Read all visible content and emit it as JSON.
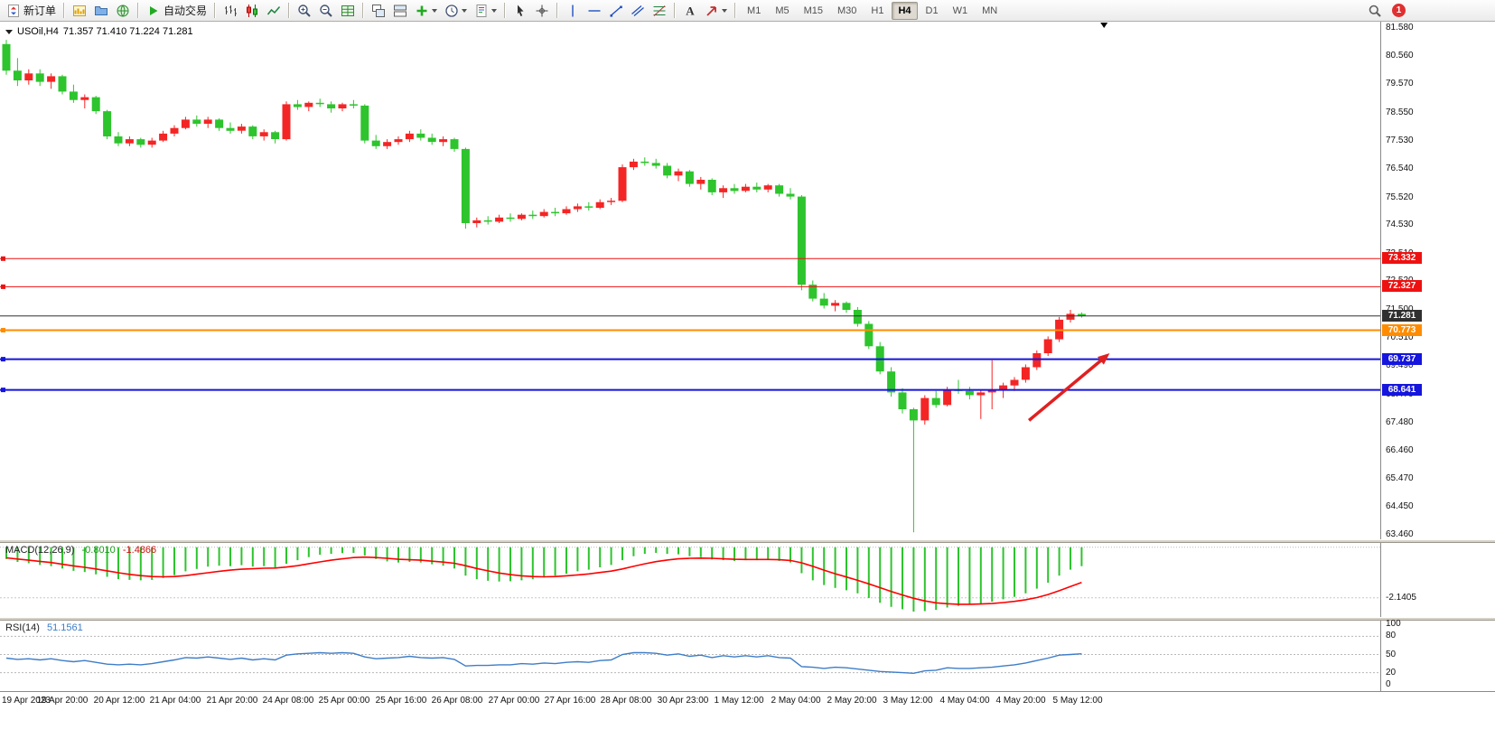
{
  "toolbar": {
    "items": [
      {
        "name": "new-order-button",
        "icon": "new-order",
        "label": "新订单"
      },
      {
        "name": "sep"
      },
      {
        "name": "charts-button",
        "icon": "chart-yellow"
      },
      {
        "name": "profiles-button",
        "icon": "profiles"
      },
      {
        "name": "market-watch-button",
        "icon": "globe"
      },
      {
        "name": "sep"
      },
      {
        "name": "auto-trading-button",
        "icon": "play",
        "label": "自动交易"
      },
      {
        "name": "sep"
      },
      {
        "name": "bar-chart-button",
        "icon": "bars"
      },
      {
        "name": "candlestick-chart-button",
        "icon": "candles"
      },
      {
        "name": "line-chart-button",
        "icon": "linechart"
      },
      {
        "name": "sep"
      },
      {
        "name": "zoom-in-button",
        "icon": "zoom-in"
      },
      {
        "name": "zoom-out-button",
        "icon": "zoom-out"
      },
      {
        "name": "tile-windows-button",
        "icon": "grid"
      },
      {
        "name": "sep"
      },
      {
        "name": "cascade-windows-button",
        "icon": "cascade"
      },
      {
        "name": "arrange-windows-button",
        "icon": "tile"
      },
      {
        "name": "indicators-button",
        "icon": "indicator",
        "caret": true
      },
      {
        "name": "periods-button",
        "icon": "clock",
        "caret": true
      },
      {
        "name": "templates-button",
        "icon": "template",
        "caret": true
      },
      {
        "name": "sep"
      },
      {
        "name": "cursor-button",
        "icon": "cursor"
      },
      {
        "name": "crosshair-button",
        "icon": "crosshair"
      },
      {
        "name": "sep"
      },
      {
        "name": "vertical-line-button",
        "icon": "vline"
      },
      {
        "name": "horizontal-line-button",
        "icon": "hline"
      },
      {
        "name": "trendline-button",
        "icon": "trendline"
      },
      {
        "name": "channel-button",
        "icon": "channel"
      },
      {
        "name": "fibonacci-button",
        "icon": "fibo"
      },
      {
        "name": "sep"
      },
      {
        "name": "text-button",
        "icon": "textA"
      },
      {
        "name": "arrows-button",
        "icon": "arrowshape",
        "caret": true
      },
      {
        "name": "sep"
      }
    ],
    "timeframes": [
      "M1",
      "M5",
      "M15",
      "M30",
      "H1",
      "H4",
      "D1",
      "W1",
      "MN"
    ],
    "active_timeframe": "H4",
    "notification_count": "1"
  },
  "chart_data": {
    "type": "candlestick",
    "symbol": "USOil",
    "timeframe": "H4",
    "title": "USOil,H4",
    "ohlc_text": "71.357 71.410 71.224 71.281",
    "current_ohlc": {
      "open": "71.357",
      "high": "71.410",
      "low": "71.224",
      "close": "71.281"
    },
    "up_color": "#f42525",
    "down_color": "#2dc42d",
    "y_domain": [
      81.8,
      63.3
    ],
    "price_axis_ticks": [
      "81.580",
      "80.560",
      "79.570",
      "78.550",
      "77.530",
      "76.540",
      "75.520",
      "74.530",
      "73.510",
      "72.520",
      "71.500",
      "70.510",
      "69.490",
      "68.470",
      "67.480",
      "66.460",
      "65.470",
      "64.450",
      "63.460"
    ],
    "time_axis_ticks": [
      "19 Apr 2023",
      "19 Apr 20:00",
      "20 Apr 12:00",
      "21 Apr 04:00",
      "21 Apr 20:00",
      "24 Apr 08:00",
      "25 Apr 00:00",
      "25 Apr 16:00",
      "26 Apr 08:00",
      "27 Apr 00:00",
      "27 Apr 16:00",
      "28 Apr 08:00",
      "30 Apr 23:00",
      "1 May 12:00",
      "2 May 04:00",
      "2 May 20:00",
      "3 May 12:00",
      "4 May 04:00",
      "4 May 20:00",
      "5 May 12:00"
    ],
    "hlines": [
      {
        "price": 73.332,
        "label": "73.332",
        "color": "#ee1111",
        "width": 1
      },
      {
        "price": 72.327,
        "label": "72.327",
        "color": "#ee1111",
        "width": 1
      },
      {
        "price": 71.281,
        "label": "71.281",
        "color": "#303030",
        "width": 1,
        "current": true
      },
      {
        "price": 70.773,
        "label": "70.773",
        "color": "#ff8c00",
        "width": 2
      },
      {
        "price": 69.737,
        "label": "69.737",
        "color": "#1515dd",
        "width": 2
      },
      {
        "price": 68.641,
        "label": "68.641",
        "color": "#1515dd",
        "width": 2
      }
    ],
    "trend_arrow": {
      "from_index": 91.3,
      "from_price": 67.55,
      "to_index": 98.5,
      "to_price": 69.95,
      "color": "#e02020"
    },
    "shift_marker_index": 98,
    "candles_ohlc": [
      [
        81.0,
        81.15,
        79.9,
        80.05
      ],
      [
        80.05,
        80.5,
        79.5,
        79.7
      ],
      [
        79.7,
        80.1,
        79.55,
        79.95
      ],
      [
        79.95,
        80.1,
        79.5,
        79.65
      ],
      [
        79.65,
        79.95,
        79.4,
        79.85
      ],
      [
        79.85,
        79.9,
        79.2,
        79.3
      ],
      [
        79.3,
        79.55,
        78.9,
        79.0
      ],
      [
        79.0,
        79.2,
        78.7,
        79.1
      ],
      [
        79.1,
        79.15,
        78.5,
        78.6
      ],
      [
        78.6,
        78.65,
        77.6,
        77.7
      ],
      [
        77.7,
        77.85,
        77.35,
        77.45
      ],
      [
        77.45,
        77.7,
        77.35,
        77.6
      ],
      [
        77.6,
        77.65,
        77.3,
        77.4
      ],
      [
        77.4,
        77.65,
        77.3,
        77.55
      ],
      [
        77.55,
        77.9,
        77.5,
        77.8
      ],
      [
        77.8,
        78.1,
        77.7,
        78.0
      ],
      [
        78.0,
        78.4,
        77.95,
        78.3
      ],
      [
        78.3,
        78.45,
        78.05,
        78.15
      ],
      [
        78.15,
        78.4,
        78.0,
        78.3
      ],
      [
        78.3,
        78.35,
        77.9,
        78.0
      ],
      [
        78.0,
        78.2,
        77.8,
        77.9
      ],
      [
        77.9,
        78.15,
        77.8,
        78.05
      ],
      [
        78.05,
        78.1,
        77.6,
        77.7
      ],
      [
        77.7,
        77.95,
        77.55,
        77.85
      ],
      [
        77.85,
        77.9,
        77.45,
        77.6
      ],
      [
        77.6,
        78.95,
        77.55,
        78.85
      ],
      [
        78.85,
        79.0,
        78.65,
        78.75
      ],
      [
        78.75,
        78.95,
        78.6,
        78.9
      ],
      [
        78.9,
        79.05,
        78.75,
        78.85
      ],
      [
        78.85,
        78.95,
        78.55,
        78.7
      ],
      [
        78.7,
        78.9,
        78.6,
        78.85
      ],
      [
        78.85,
        79.0,
        78.7,
        78.8
      ],
      [
        78.8,
        78.85,
        77.45,
        77.55
      ],
      [
        77.55,
        77.75,
        77.25,
        77.35
      ],
      [
        77.35,
        77.6,
        77.25,
        77.5
      ],
      [
        77.5,
        77.7,
        77.4,
        77.6
      ],
      [
        77.6,
        77.9,
        77.5,
        77.8
      ],
      [
        77.8,
        77.95,
        77.55,
        77.65
      ],
      [
        77.65,
        77.8,
        77.4,
        77.5
      ],
      [
        77.5,
        77.7,
        77.35,
        77.6
      ],
      [
        77.6,
        77.65,
        77.15,
        77.25
      ],
      [
        77.25,
        77.3,
        74.4,
        74.6
      ],
      [
        74.6,
        74.8,
        74.45,
        74.7
      ],
      [
        74.7,
        74.85,
        74.55,
        74.65
      ],
      [
        74.65,
        74.9,
        74.6,
        74.8
      ],
      [
        74.8,
        74.95,
        74.65,
        74.75
      ],
      [
        74.75,
        74.95,
        74.7,
        74.9
      ],
      [
        74.9,
        75.05,
        74.75,
        74.85
      ],
      [
        74.85,
        75.1,
        74.8,
        75.0
      ],
      [
        75.0,
        75.15,
        74.85,
        74.95
      ],
      [
        74.95,
        75.2,
        74.9,
        75.1
      ],
      [
        75.1,
        75.3,
        75.0,
        75.2
      ],
      [
        75.2,
        75.35,
        75.05,
        75.15
      ],
      [
        75.15,
        75.45,
        75.1,
        75.35
      ],
      [
        75.35,
        75.5,
        75.25,
        75.4
      ],
      [
        75.4,
        76.7,
        75.35,
        76.6
      ],
      [
        76.6,
        76.9,
        76.5,
        76.8
      ],
      [
        76.8,
        76.95,
        76.65,
        76.75
      ],
      [
        76.75,
        76.9,
        76.55,
        76.65
      ],
      [
        76.65,
        76.75,
        76.2,
        76.3
      ],
      [
        76.3,
        76.55,
        76.1,
        76.45
      ],
      [
        76.45,
        76.5,
        75.9,
        76.0
      ],
      [
        76.0,
        76.25,
        75.8,
        76.15
      ],
      [
        76.15,
        76.2,
        75.6,
        75.7
      ],
      [
        75.7,
        75.95,
        75.5,
        75.85
      ],
      [
        75.85,
        76.0,
        75.65,
        75.75
      ],
      [
        75.75,
        76.0,
        75.7,
        75.9
      ],
      [
        75.9,
        76.05,
        75.7,
        75.8
      ],
      [
        75.8,
        76.0,
        75.7,
        75.95
      ],
      [
        75.95,
        76.0,
        75.55,
        75.65
      ],
      [
        75.65,
        75.85,
        75.45,
        75.55
      ],
      [
        75.55,
        75.6,
        72.2,
        72.4
      ],
      [
        72.4,
        72.55,
        71.8,
        71.9
      ],
      [
        71.9,
        72.1,
        71.55,
        71.65
      ],
      [
        71.65,
        71.85,
        71.45,
        71.75
      ],
      [
        71.75,
        71.8,
        71.4,
        71.5
      ],
      [
        71.5,
        71.6,
        70.9,
        71.0
      ],
      [
        71.0,
        71.1,
        70.1,
        70.2
      ],
      [
        70.2,
        70.35,
        69.2,
        69.3
      ],
      [
        69.3,
        69.45,
        68.4,
        68.55
      ],
      [
        68.55,
        68.7,
        67.8,
        67.95
      ],
      [
        67.95,
        68.0,
        63.55,
        67.55
      ],
      [
        67.55,
        68.45,
        67.4,
        68.35
      ],
      [
        68.35,
        68.6,
        68.0,
        68.1
      ],
      [
        68.1,
        68.75,
        68.05,
        68.65
      ],
      [
        68.65,
        69.0,
        68.5,
        68.6
      ],
      [
        68.6,
        68.75,
        68.3,
        68.45
      ],
      [
        68.45,
        68.65,
        67.6,
        68.55
      ],
      [
        68.55,
        69.7,
        67.95,
        68.65
      ],
      [
        68.65,
        68.9,
        68.35,
        68.8
      ],
      [
        68.8,
        69.1,
        68.6,
        69.0
      ],
      [
        69.0,
        69.55,
        68.9,
        69.45
      ],
      [
        69.45,
        70.05,
        69.35,
        69.95
      ],
      [
        69.95,
        70.55,
        69.85,
        70.45
      ],
      [
        70.45,
        71.25,
        70.35,
        71.15
      ],
      [
        71.15,
        71.5,
        71.05,
        71.36
      ],
      [
        71.357,
        71.41,
        71.224,
        71.281
      ]
    ],
    "indicators": [
      {
        "type": "macd",
        "label": "MACD(12,26,9)",
        "value": "-0.8010",
        "signal_value": "-1.4866",
        "histogram_color": "#2dc42d",
        "signal_color": "#ff0000",
        "y_domain": [
          0.18,
          -2.95
        ],
        "axis_ticks": [
          {
            "label": "-2.1405",
            "value": -2.1405
          }
        ],
        "histogram": [
          -0.5,
          -0.62,
          -0.68,
          -0.75,
          -0.8,
          -0.9,
          -1.0,
          -1.05,
          -1.15,
          -1.25,
          -1.35,
          -1.38,
          -1.4,
          -1.38,
          -1.3,
          -1.18,
          -1.02,
          -0.92,
          -0.82,
          -0.78,
          -0.8,
          -0.76,
          -0.82,
          -0.8,
          -0.85,
          -0.7,
          -0.55,
          -0.42,
          -0.32,
          -0.28,
          -0.25,
          -0.24,
          -0.35,
          -0.5,
          -0.6,
          -0.65,
          -0.62,
          -0.65,
          -0.72,
          -0.78,
          -0.9,
          -1.2,
          -1.35,
          -1.42,
          -1.45,
          -1.44,
          -1.4,
          -1.35,
          -1.28,
          -1.2,
          -1.12,
          -1.02,
          -0.95,
          -0.85,
          -0.75,
          -0.55,
          -0.38,
          -0.28,
          -0.24,
          -0.28,
          -0.3,
          -0.38,
          -0.42,
          -0.52,
          -0.55,
          -0.58,
          -0.55,
          -0.55,
          -0.52,
          -0.58,
          -0.65,
          -1.1,
          -1.4,
          -1.6,
          -1.72,
          -1.82,
          -1.95,
          -2.15,
          -2.35,
          -2.52,
          -2.62,
          -2.72,
          -2.7,
          -2.65,
          -2.55,
          -2.48,
          -2.42,
          -2.38,
          -2.3,
          -2.2,
          -2.1,
          -1.95,
          -1.75,
          -1.5,
          -1.2,
          -0.95,
          -0.801
        ],
        "signal": [
          -0.45,
          -0.5,
          -0.55,
          -0.6,
          -0.65,
          -0.72,
          -0.79,
          -0.85,
          -0.92,
          -1.0,
          -1.08,
          -1.15,
          -1.2,
          -1.24,
          -1.25,
          -1.24,
          -1.2,
          -1.14,
          -1.08,
          -1.02,
          -0.97,
          -0.93,
          -0.91,
          -0.89,
          -0.88,
          -0.84,
          -0.78,
          -0.7,
          -0.62,
          -0.55,
          -0.49,
          -0.44,
          -0.42,
          -0.44,
          -0.47,
          -0.51,
          -0.53,
          -0.55,
          -0.59,
          -0.63,
          -0.68,
          -0.78,
          -0.9,
          -1.0,
          -1.09,
          -1.16,
          -1.21,
          -1.24,
          -1.25,
          -1.24,
          -1.21,
          -1.17,
          -1.13,
          -1.07,
          -1.01,
          -0.92,
          -0.81,
          -0.7,
          -0.61,
          -0.54,
          -0.49,
          -0.47,
          -0.46,
          -0.47,
          -0.49,
          -0.51,
          -0.52,
          -0.52,
          -0.52,
          -0.53,
          -0.56,
          -0.66,
          -0.81,
          -0.97,
          -1.12,
          -1.26,
          -1.4,
          -1.55,
          -1.71,
          -1.87,
          -2.02,
          -2.16,
          -2.27,
          -2.35,
          -2.39,
          -2.41,
          -2.41,
          -2.4,
          -2.38,
          -2.34,
          -2.29,
          -2.22,
          -2.13,
          -2.0,
          -1.84,
          -1.66,
          -1.4866
        ]
      },
      {
        "type": "rsi",
        "label": "RSI(14)",
        "value": "51.1561",
        "line_color": "#3e7dc8",
        "y_dom": [
          100,
          0
        ],
        "levels": [
          {
            "label": "100",
            "value": 100
          },
          {
            "label": "80",
            "value": 80
          },
          {
            "label": "50",
            "value": 50
          },
          {
            "label": "20",
            "value": 20
          },
          {
            "label": "0",
            "value": 0
          }
        ],
        "values": [
          44,
          42,
          43,
          41,
          43,
          40,
          38,
          40,
          37,
          34,
          33,
          34,
          33,
          35,
          38,
          41,
          45,
          44,
          46,
          44,
          42,
          44,
          41,
          43,
          41,
          49,
          51,
          52,
          53,
          52,
          53,
          52,
          46,
          43,
          44,
          45,
          47,
          45,
          44,
          45,
          42,
          31,
          32,
          32,
          33,
          33,
          35,
          34,
          36,
          35,
          37,
          38,
          37,
          40,
          41,
          50,
          53,
          53,
          52,
          49,
          51,
          47,
          49,
          45,
          48,
          46,
          48,
          46,
          48,
          45,
          44,
          30,
          29,
          27,
          29,
          28,
          26,
          24,
          22,
          21,
          20,
          19,
          23,
          24,
          28,
          27,
          27,
          28,
          29,
          31,
          33,
          36,
          40,
          44,
          49,
          50,
          51.16
        ]
      }
    ]
  }
}
